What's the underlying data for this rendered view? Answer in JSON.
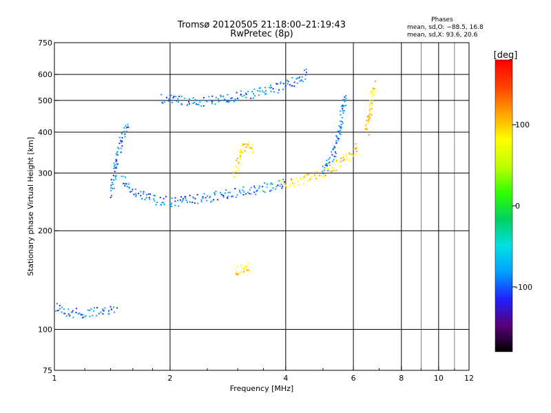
{
  "chart_data": {
    "type": "scatter",
    "title": "Tromsø 20120505 21:18:00–21:19:43",
    "subtitle": "RwPretec (8p)",
    "xlabel": "Frequency [MHz]",
    "ylabel": "Stationary phase Virtual Height [km]",
    "x_scale": "log",
    "y_scale": "log",
    "xlim": [
      1,
      12
    ],
    "ylim": [
      75,
      750
    ],
    "x_ticks": [
      1,
      2,
      4,
      6,
      8,
      10,
      12
    ],
    "x_tick_labels": [
      "1",
      "2",
      "4",
      "6",
      "8",
      "10",
      "12"
    ],
    "x_gridlines": [
      2,
      4,
      6,
      8,
      10
    ],
    "y_ticks": [
      75,
      100,
      200,
      300,
      400,
      500,
      600,
      750
    ],
    "y_tick_labels": [
      "75",
      "100",
      "200",
      "300",
      "400",
      "500",
      "600",
      "750"
    ],
    "y_gridlines": [
      100,
      200,
      300,
      400,
      500,
      600
    ],
    "grid": true,
    "colorbar": {
      "label": "[deg]",
      "range": [
        -180,
        180
      ],
      "ticks": [
        100,
        0,
        -100
      ],
      "tick_labels": [
        "100",
        "0",
        "-100"
      ],
      "colormap": [
        "#000000",
        "#5a007a",
        "#2020ff",
        "#00a0ff",
        "#00e0e0",
        "#00d060",
        "#30ff00",
        "#c0ff00",
        "#ffff00",
        "#ffa000",
        "#ff4000",
        "#ff0000"
      ]
    },
    "phases": {
      "heading": "Phases",
      "line_o": "mean, sd,O: −88.5, 16.8",
      "line_x": "mean, sd,X:  93.6, 20.6"
    },
    "series": [
      {
        "name": "O",
        "phase_deg": -88.5,
        "traces": [
          {
            "x": [
              1.0,
              1.05,
              1.1,
              1.2,
              1.35,
              1.45
            ],
            "y": [
              118,
              115,
              112,
              112,
              113,
              115
            ]
          },
          {
            "x": [
              1.5,
              1.6,
              1.8,
              2.0,
              2.2,
              2.5,
              2.8,
              3.2,
              3.6,
              4.0
            ],
            "y": [
              290,
              265,
              250,
              245,
              247,
              252,
              258,
              265,
              272,
              280
            ]
          },
          {
            "x": [
              1.4,
              1.45,
              1.5,
              1.55
            ],
            "y": [
              260,
              320,
              380,
              420
            ]
          },
          {
            "x": [
              1.9,
              2.1,
              2.4,
              2.8,
              3.3,
              3.8,
              4.2,
              4.6
            ],
            "y": [
              505,
              500,
              495,
              505,
              525,
              545,
              570,
              605
            ]
          },
          {
            "x": [
              5.0,
              5.3,
              5.5,
              5.6,
              5.7
            ],
            "y": [
              300,
              340,
              390,
              450,
              520
            ]
          }
        ]
      },
      {
        "name": "X",
        "phase_deg": 93.6,
        "traces": [
          {
            "x": [
              3.9,
              4.2,
              4.6,
              5.0,
              5.4,
              5.8,
              6.2
            ],
            "y": [
              275,
              280,
              290,
              300,
              315,
              335,
              365
            ]
          },
          {
            "x": [
              2.95,
              3.0,
              3.05,
              3.1,
              3.2,
              3.3
            ],
            "y": [
              300,
              320,
              340,
              360,
              370,
              345
            ]
          },
          {
            "x": [
              2.95,
              3.05,
              3.15,
              3.25
            ],
            "y": [
              150,
              152,
              155,
              155
            ]
          },
          {
            "x": [
              6.5,
              6.6,
              6.7,
              6.8
            ],
            "y": [
              400,
              450,
              500,
              560
            ]
          }
        ]
      }
    ]
  }
}
